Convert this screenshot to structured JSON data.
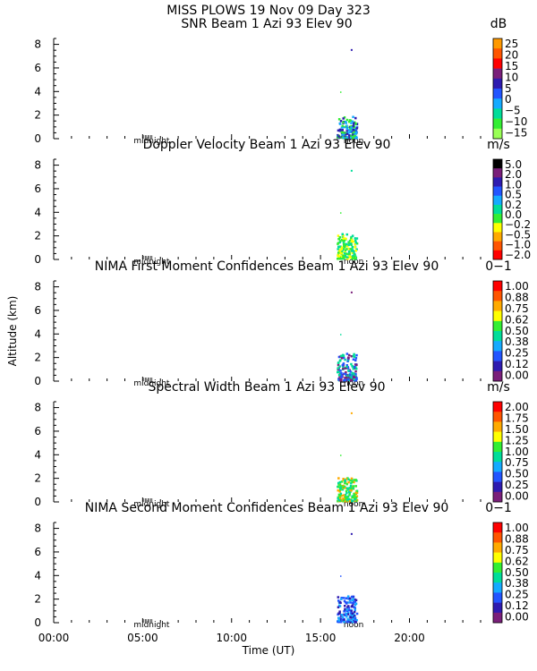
{
  "title": "MISS PLOWS  19 Nov 09 Day 323",
  "ylabel": "Altitude (km)",
  "xlabel": "Time (UT)",
  "x_ticks": [
    "00:00",
    "05:00",
    "10:00",
    "15:00",
    "20:00"
  ],
  "marker_labels": {
    "midnight": "midnight",
    "noon": "noon"
  },
  "chart_data": [
    {
      "type": "heatmap",
      "title": "SNR Beam 1 Azi   93 Elev 90",
      "unit": "dB",
      "ylim": [
        0,
        8.5
      ],
      "y_ticks": [
        0,
        2,
        4,
        6,
        8
      ],
      "xlim_hours": [
        0,
        24
      ],
      "colorbar": {
        "labels": [
          "25",
          "20",
          "15",
          "10",
          "5",
          "0",
          "−5",
          "−10",
          "−15"
        ],
        "colors": [
          "#ff9900",
          "#ff5500",
          "#ff0000",
          "#7a1f7a",
          "#2e1bb0",
          "#2255ff",
          "#14aaff",
          "#00dd99",
          "#33ee33",
          "#99ff55"
        ]
      },
      "echo_region": {
        "x_hours": [
          15.9,
          17.0
        ],
        "y_km": [
          0,
          1.8
        ],
        "dominant_colors": [
          "#33ee33",
          "#14aaff",
          "#2e1bb0"
        ]
      }
    },
    {
      "type": "heatmap",
      "title": "Doppler Velocity Beam 1 Azi   93 Elev 90",
      "unit": "m/s",
      "ylim": [
        0,
        8.5
      ],
      "y_ticks": [
        0,
        2,
        4,
        6,
        8
      ],
      "xlim_hours": [
        0,
        24
      ],
      "colorbar": {
        "labels": [
          "5.0",
          "2.0",
          "1.0",
          "0.5",
          "0.2",
          "0.0",
          "−0.2",
          "−0.5",
          "−1.0",
          "−2.0"
        ],
        "colors": [
          "#000000",
          "#7a1f7a",
          "#2e1bb0",
          "#2255ff",
          "#14aaff",
          "#00dd99",
          "#33ee33",
          "#ffff00",
          "#ffaa00",
          "#ff5500",
          "#ff0000"
        ]
      },
      "echo_region": {
        "x_hours": [
          15.9,
          17.0
        ],
        "y_km": [
          0,
          2.1
        ],
        "dominant_colors": [
          "#33ee33",
          "#ffff00",
          "#00dd99"
        ]
      }
    },
    {
      "type": "heatmap",
      "title": "NIMA First Moment Confidences Beam 1 Azi   93 Elev 90",
      "unit": "0−1",
      "ylim": [
        0,
        8.5
      ],
      "y_ticks": [
        0,
        2,
        4,
        6,
        8
      ],
      "xlim_hours": [
        0,
        24
      ],
      "colorbar": {
        "labels": [
          "1.00",
          "0.88",
          "0.75",
          "0.62",
          "0.50",
          "0.38",
          "0.25",
          "0.12",
          "0.00"
        ],
        "colors": [
          "#ff0000",
          "#ff5500",
          "#ffaa00",
          "#ffff00",
          "#33ee33",
          "#00dd99",
          "#14aaff",
          "#2255ff",
          "#2e1bb0",
          "#7a1f7a"
        ]
      },
      "echo_region": {
        "x_hours": [
          15.9,
          17.0
        ],
        "y_km": [
          0,
          2.3
        ],
        "dominant_colors": [
          "#00dd99",
          "#2255ff",
          "#7a1f7a"
        ]
      }
    },
    {
      "type": "heatmap",
      "title": "Spectral Width Beam 1 Azi   93 Elev 90",
      "unit": "m/s",
      "ylim": [
        0,
        8.5
      ],
      "y_ticks": [
        0,
        2,
        4,
        6,
        8
      ],
      "xlim_hours": [
        0,
        24
      ],
      "colorbar": {
        "labels": [
          "2.00",
          "1.75",
          "1.50",
          "1.25",
          "1.00",
          "0.75",
          "0.50",
          "0.25",
          "0.00"
        ],
        "colors": [
          "#ff0000",
          "#ff5500",
          "#ffaa00",
          "#ffff00",
          "#33ee33",
          "#00dd99",
          "#14aaff",
          "#2255ff",
          "#2e1bb0",
          "#7a1f7a"
        ]
      },
      "echo_region": {
        "x_hours": [
          15.9,
          17.0
        ],
        "y_km": [
          0,
          2.0
        ],
        "dominant_colors": [
          "#33ee33",
          "#00dd99",
          "#ffaa00"
        ]
      }
    },
    {
      "type": "heatmap",
      "title": "NIMA Second Moment Confidences Beam 1 Azi   93 Elev 90",
      "unit": "0−1",
      "ylim": [
        0,
        8.5
      ],
      "y_ticks": [
        0,
        2,
        4,
        6,
        8
      ],
      "xlim_hours": [
        0,
        24
      ],
      "colorbar": {
        "labels": [
          "1.00",
          "0.88",
          "0.75",
          "0.62",
          "0.50",
          "0.38",
          "0.25",
          "0.12",
          "0.00"
        ],
        "colors": [
          "#ff0000",
          "#ff5500",
          "#ffaa00",
          "#ffff00",
          "#33ee33",
          "#00dd99",
          "#14aaff",
          "#2255ff",
          "#2e1bb0",
          "#7a1f7a"
        ]
      },
      "echo_region": {
        "x_hours": [
          15.9,
          17.0
        ],
        "y_km": [
          0,
          2.2
        ],
        "dominant_colors": [
          "#2255ff",
          "#14aaff",
          "#2e1bb0"
        ]
      }
    }
  ]
}
